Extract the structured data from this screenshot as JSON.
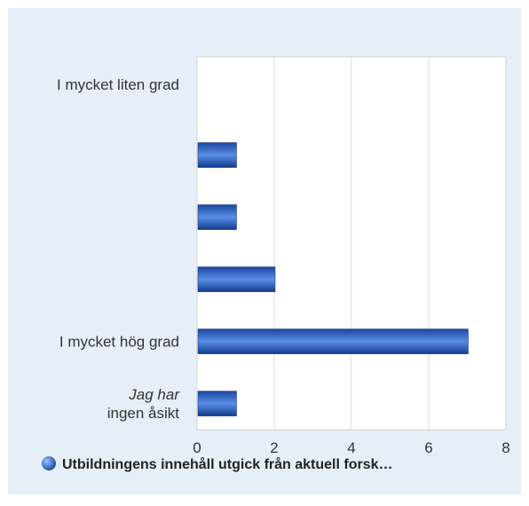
{
  "chart_data": {
    "type": "bar",
    "orientation": "horizontal",
    "categories": [
      [
        "I mycket liten grad"
      ],
      [
        ""
      ],
      [
        ""
      ],
      [
        ""
      ],
      [
        "I mycket hög grad"
      ],
      [
        "Jag har",
        "ingen åsikt"
      ]
    ],
    "category_italic_first_line": [
      false,
      false,
      false,
      false,
      false,
      true
    ],
    "values": [
      0,
      1,
      1,
      2,
      7,
      1
    ],
    "xlim": [
      0,
      8
    ],
    "xticks": [
      0,
      2,
      4,
      6,
      8
    ],
    "grid": true,
    "legend": {
      "position": "bottom",
      "label": "Utbildningens innehåll utgick från aktuell forsk…"
    },
    "colors": {
      "panel": "#e6eef8",
      "plot": "#ffffff",
      "bar_dark": "#143c8c",
      "bar_light": "#5a8ee6",
      "grid": "#dcdcdc",
      "text": "#333333"
    }
  }
}
